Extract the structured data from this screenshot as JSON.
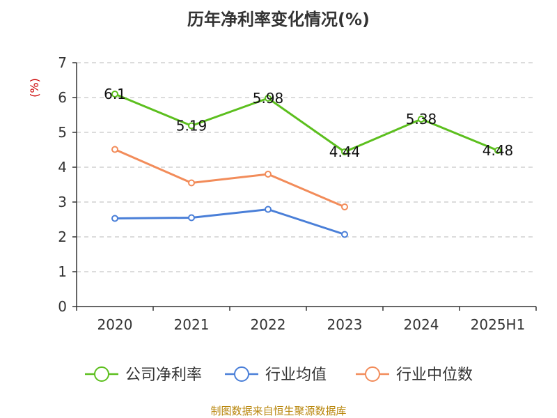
{
  "chart_data": {
    "type": "line",
    "title": "历年净利率变化情况(%)",
    "ylabel": "(%)",
    "xlabel": "",
    "categories": [
      "2020",
      "2021",
      "2022",
      "2023",
      "2024",
      "2025H1"
    ],
    "ylim": [
      0,
      7
    ],
    "yticks": [
      0,
      1,
      2,
      3,
      4,
      5,
      6,
      7
    ],
    "grid": true,
    "legend_position": "bottom",
    "series": [
      {
        "name": "公司净利率",
        "color": "#5cbf1e",
        "values": [
          6.1,
          5.19,
          5.98,
          4.44,
          5.38,
          4.48
        ],
        "labels": [
          "6.1",
          "5.19",
          "5.98",
          "4.44",
          "5.38",
          "4.48"
        ]
      },
      {
        "name": "行业均值",
        "color": "#4a7fd8",
        "values": [
          2.53,
          2.55,
          2.79,
          2.07,
          null,
          null
        ]
      },
      {
        "name": "行业中位数",
        "color": "#f28c5a",
        "values": [
          4.51,
          3.55,
          3.8,
          2.86,
          null,
          null
        ]
      }
    ]
  },
  "footer": {
    "source": "制图数据来自恒生聚源数据库"
  }
}
